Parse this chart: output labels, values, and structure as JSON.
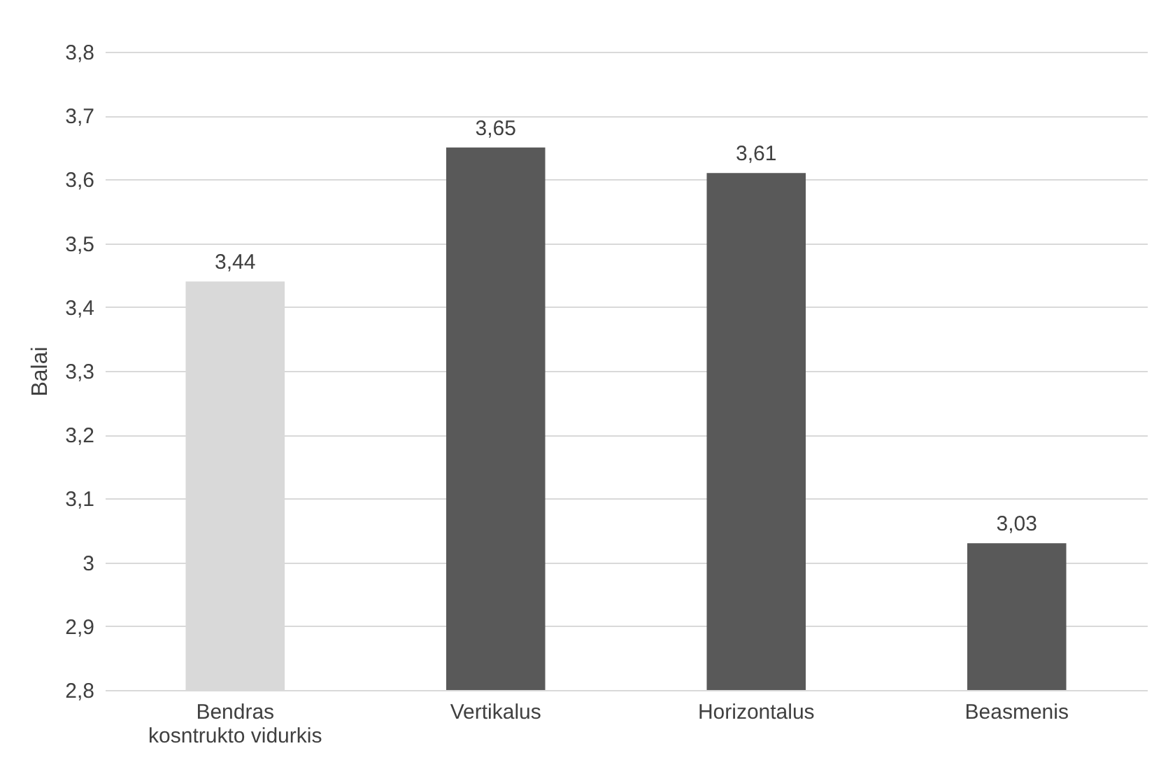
{
  "chart_data": {
    "type": "bar",
    "ylabel": "Balai",
    "categories": [
      "Bendras kosntrukto vidurkis",
      "Vertikalus",
      "Horizontalus",
      "Beasmenis"
    ],
    "values": [
      3.44,
      3.65,
      3.61,
      3.03
    ],
    "colors": [
      "#d9d9d9",
      "#595959",
      "#595959",
      "#595959"
    ],
    "value_labels": [
      "3,44",
      "3,65",
      "3,61",
      "3,03"
    ],
    "ylim": [
      2.8,
      3.8
    ],
    "yticks": [
      {
        "value": 2.8,
        "label": "2,8"
      },
      {
        "value": 2.9,
        "label": "2,9"
      },
      3,
      {
        "value": 3.1,
        "label": "3,1"
      },
      {
        "value": 3.2,
        "label": "3,2"
      },
      {
        "value": 3.3,
        "label": "3,3"
      },
      {
        "value": 3.4,
        "label": "3,4"
      },
      {
        "value": 3.5,
        "label": "3,5"
      },
      {
        "value": 3.6,
        "label": "3,6"
      },
      {
        "value": 3.7,
        "label": "3,7"
      },
      {
        "value": 3.8,
        "label": "3,8"
      }
    ],
    "grid": "y"
  }
}
